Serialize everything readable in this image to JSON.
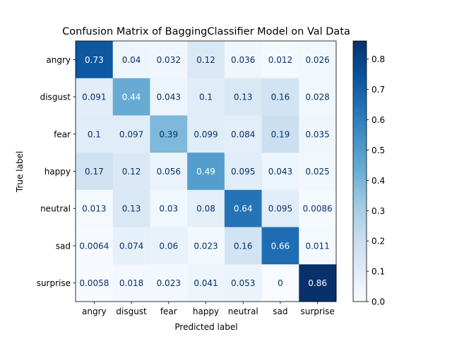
{
  "chart_data": {
    "type": "heatmap",
    "title": "Confusion Matrix of BaggingClassifier Model on Val Data",
    "xlabel": "Predicted label",
    "ylabel": "True label",
    "x_categories": [
      "angry",
      "disgust",
      "fear",
      "happy",
      "neutral",
      "sad",
      "surprise"
    ],
    "y_categories": [
      "angry",
      "disgust",
      "fear",
      "happy",
      "neutral",
      "sad",
      "surprise"
    ],
    "values": [
      [
        0.73,
        0.04,
        0.032,
        0.12,
        0.036,
        0.012,
        0.026
      ],
      [
        0.091,
        0.44,
        0.043,
        0.1,
        0.13,
        0.16,
        0.028
      ],
      [
        0.1,
        0.097,
        0.39,
        0.099,
        0.084,
        0.19,
        0.035
      ],
      [
        0.17,
        0.12,
        0.056,
        0.49,
        0.095,
        0.043,
        0.025
      ],
      [
        0.013,
        0.13,
        0.03,
        0.08,
        0.64,
        0.095,
        0.0086
      ],
      [
        0.0064,
        0.074,
        0.06,
        0.023,
        0.16,
        0.66,
        0.011
      ],
      [
        0.0058,
        0.018,
        0.023,
        0.041,
        0.053,
        0,
        0.86
      ]
    ],
    "cell_labels": [
      [
        "0.73",
        "0.04",
        "0.032",
        "0.12",
        "0.036",
        "0.012",
        "0.026"
      ],
      [
        "0.091",
        "0.44",
        "0.043",
        "0.1",
        "0.13",
        "0.16",
        "0.028"
      ],
      [
        "0.1",
        "0.097",
        "0.39",
        "0.099",
        "0.084",
        "0.19",
        "0.035"
      ],
      [
        "0.17",
        "0.12",
        "0.056",
        "0.49",
        "0.095",
        "0.043",
        "0.025"
      ],
      [
        "0.013",
        "0.13",
        "0.03",
        "0.08",
        "0.64",
        "0.095",
        "0.0086"
      ],
      [
        "0.0064",
        "0.074",
        "0.06",
        "0.023",
        "0.16",
        "0.66",
        "0.011"
      ],
      [
        "0.0058",
        "0.018",
        "0.023",
        "0.041",
        "0.053",
        "0",
        "0.86"
      ]
    ],
    "colormap": "Blues",
    "colorbar": {
      "range": [
        0,
        0.86
      ],
      "ticks": [
        "0.0",
        "0.1",
        "0.2",
        "0.3",
        "0.4",
        "0.5",
        "0.6",
        "0.7",
        "0.8"
      ]
    },
    "grid": false
  }
}
